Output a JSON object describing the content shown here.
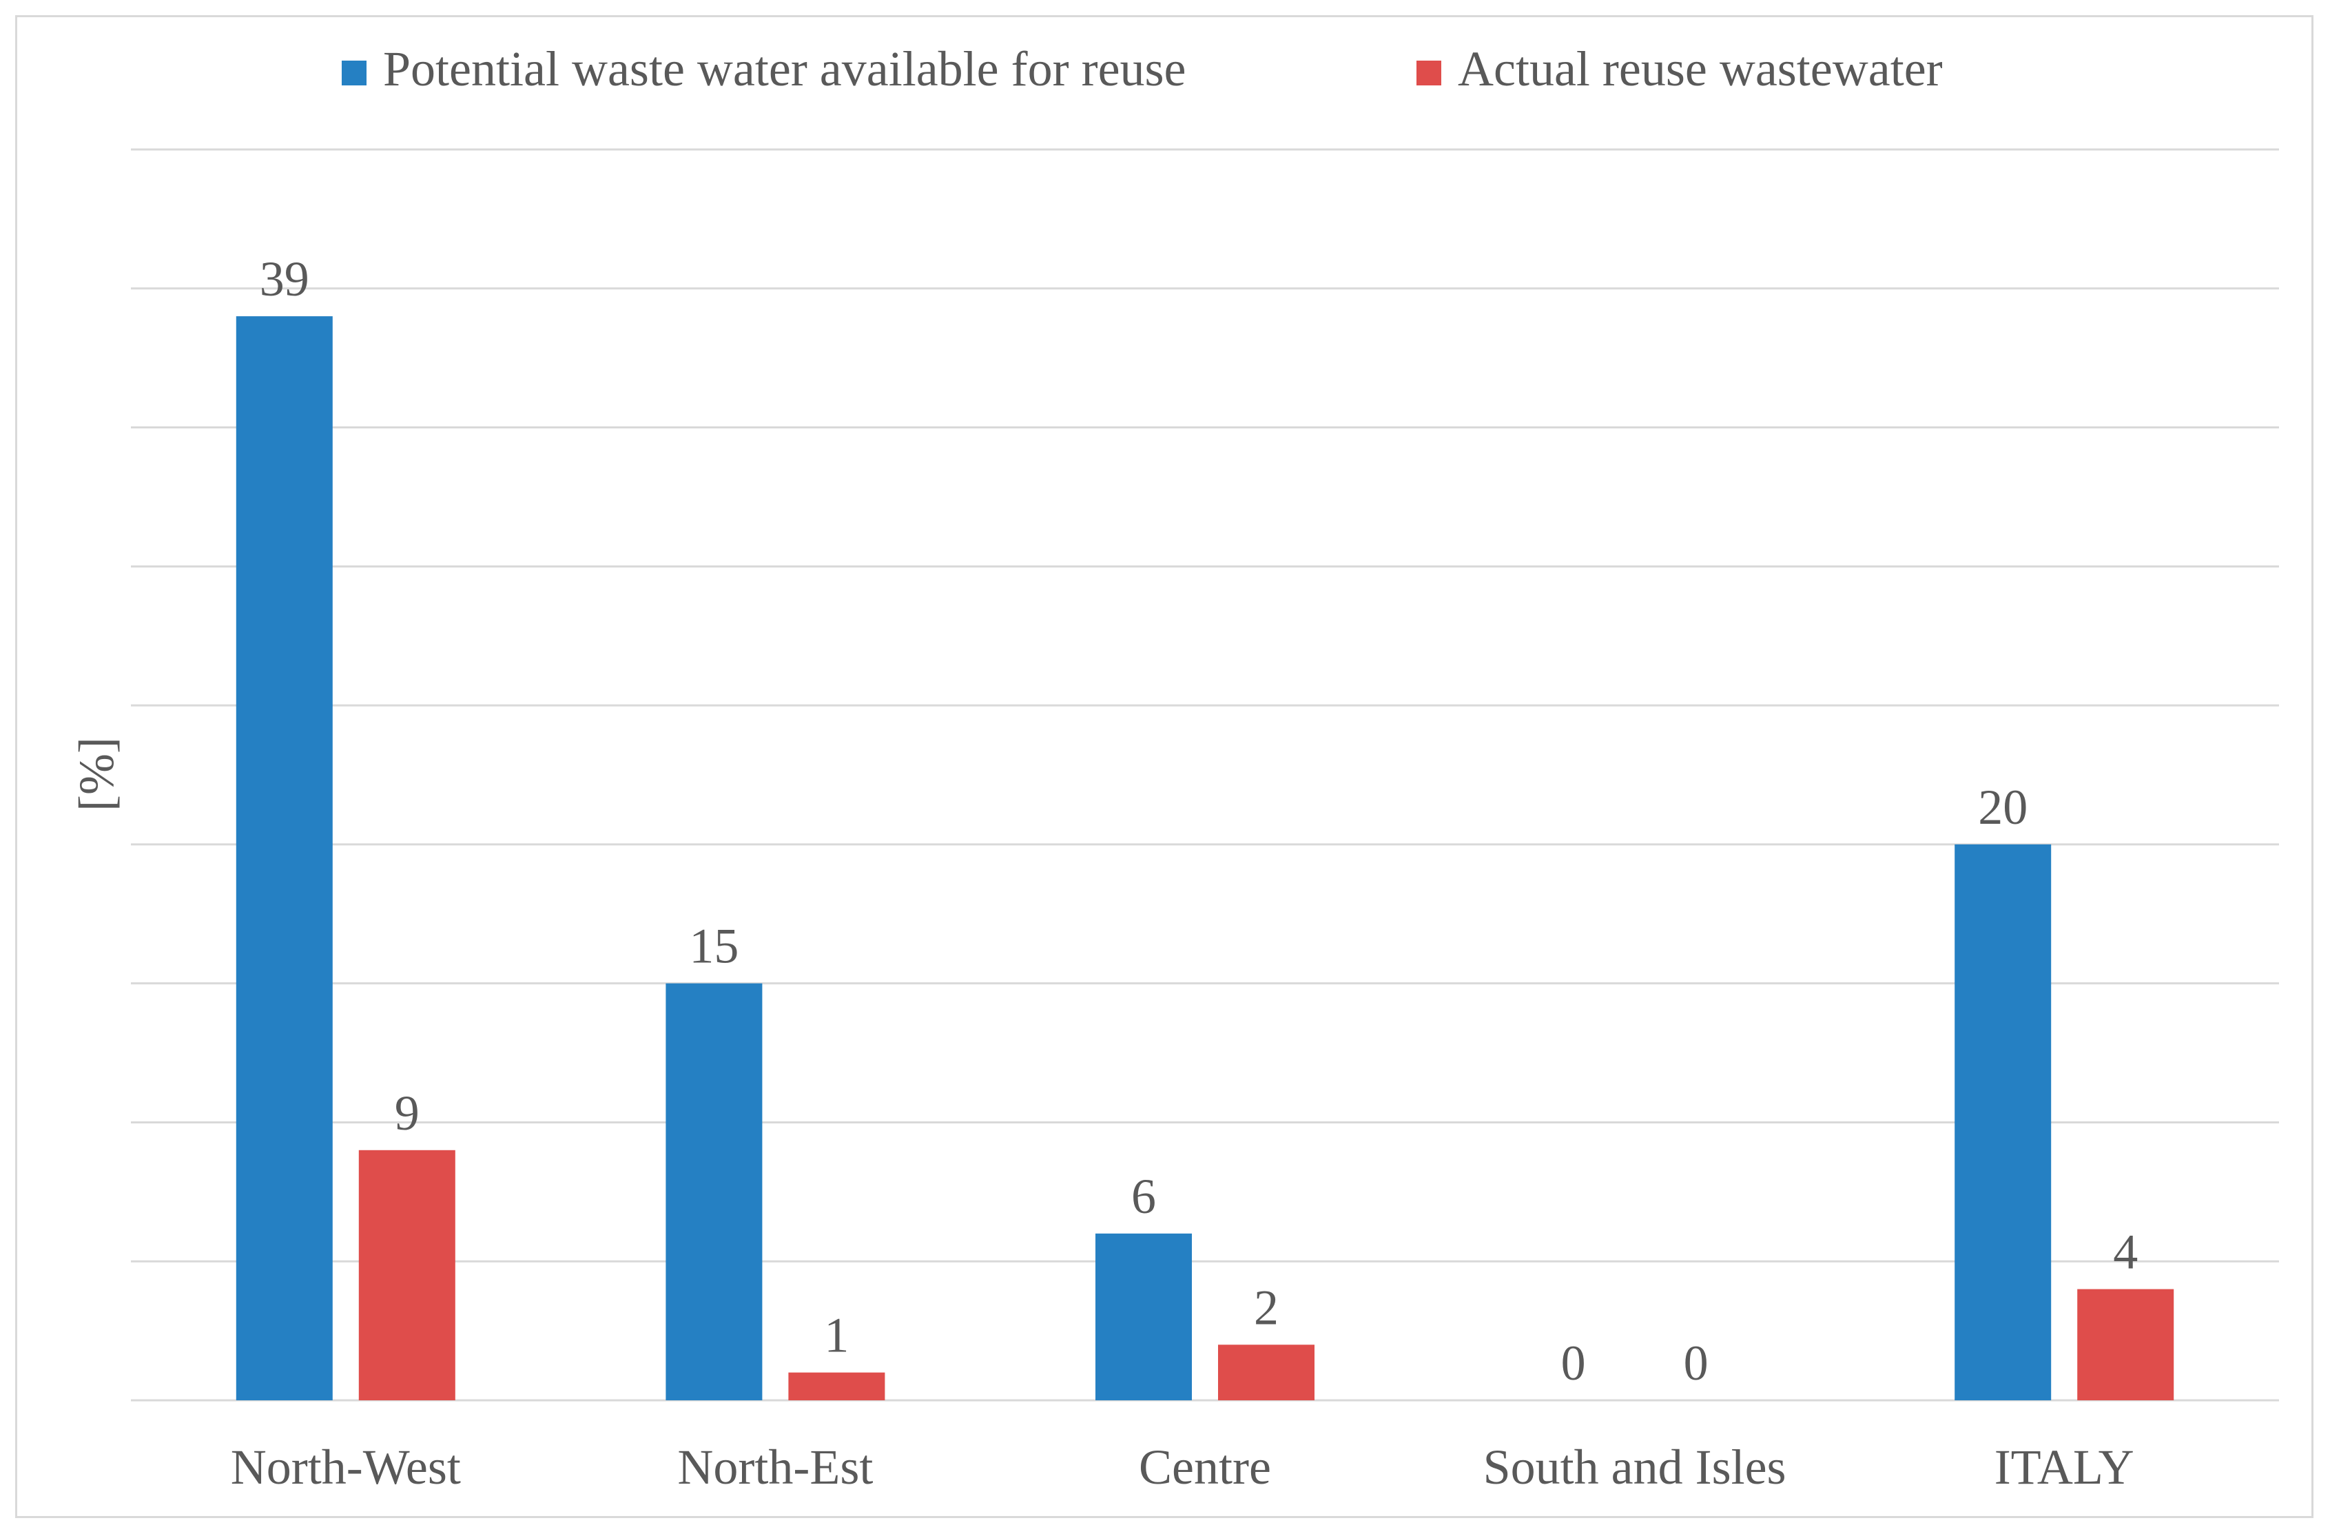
{
  "chart_data": {
    "type": "bar",
    "title": "",
    "xlabel": "",
    "ylabel": "[%]",
    "ylim": [
      0,
      45
    ],
    "grid": true,
    "legend_position": "top",
    "categories": [
      "North-West",
      "North-Est",
      "Centre",
      "South and Isles",
      "ITALY"
    ],
    "series": [
      {
        "name": "Potential waste water available for reuse",
        "color": "#2580c3",
        "values": [
          39,
          15,
          6,
          0,
          20
        ]
      },
      {
        "name": "Actual reuse wastewater",
        "color": "#df4d4b",
        "values": [
          9,
          1,
          2,
          0,
          4
        ]
      }
    ]
  }
}
